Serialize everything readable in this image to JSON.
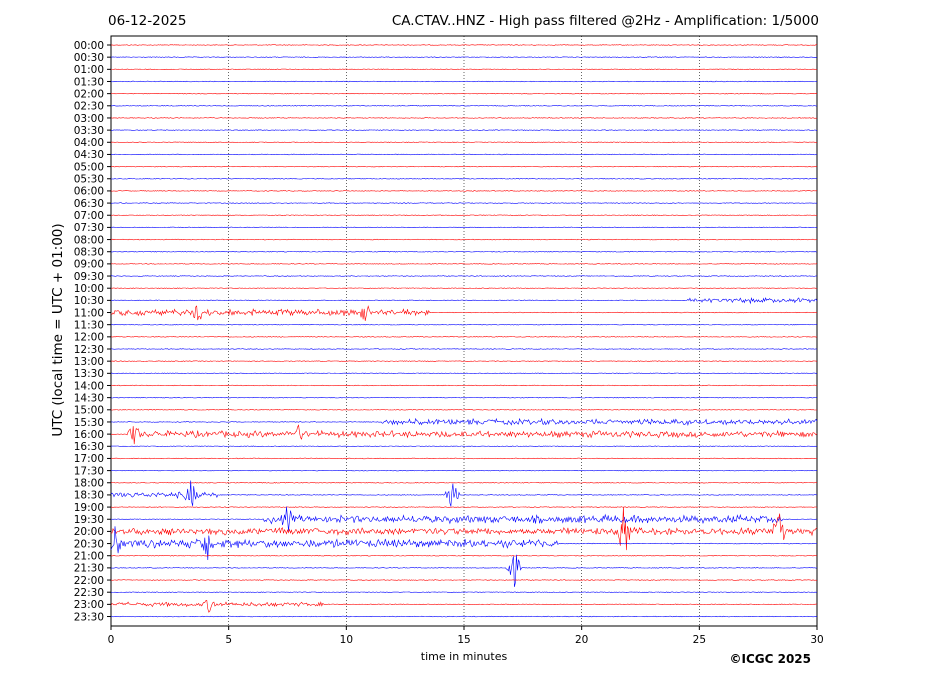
{
  "header": {
    "date": "06-12-2025",
    "title": "CA.CTAV..HNZ - High pass filtered @2Hz - Amplification: 1/5000"
  },
  "chart_data": {
    "type": "line",
    "title": "CA.CTAV..HNZ - High pass filtered @2Hz - Amplification: 1/5000",
    "xlabel": "time in minutes",
    "ylabel": "UTC (local time = UTC + 01:00)",
    "xlim": [
      0,
      30
    ],
    "x_ticks": [
      "0",
      "5",
      "10",
      "15",
      "20",
      "25",
      "30"
    ],
    "x_tick_values": [
      0,
      5,
      10,
      15,
      20,
      25,
      30
    ],
    "vertical_grid": true,
    "rows": [
      "00:00",
      "00:30",
      "01:00",
      "01:30",
      "02:00",
      "02:30",
      "03:00",
      "03:30",
      "04:00",
      "04:30",
      "05:00",
      "05:30",
      "06:00",
      "06:30",
      "07:00",
      "07:30",
      "08:00",
      "08:30",
      "09:00",
      "09:30",
      "10:00",
      "10:30",
      "11:00",
      "11:30",
      "12:00",
      "12:30",
      "13:00",
      "13:30",
      "14:00",
      "14:30",
      "15:00",
      "15:30",
      "16:00",
      "16:30",
      "17:00",
      "17:30",
      "18:00",
      "18:30",
      "19:00",
      "19:30",
      "20:00",
      "20:30",
      "21:00",
      "21:30",
      "22:00",
      "22:30",
      "23:00",
      "23:30"
    ],
    "row_colors": [
      "#ff0000",
      "#0000ff"
    ],
    "activity": [
      {
        "row": "10:30",
        "start": 24.5,
        "end": 30,
        "level": 0.35
      },
      {
        "row": "11:00",
        "start": 0,
        "end": 13.5,
        "level": 0.45
      },
      {
        "row": "15:30",
        "start": 11.5,
        "end": 30,
        "level": 0.4
      },
      {
        "row": "16:00",
        "start": 0.8,
        "end": 30,
        "level": 0.45
      },
      {
        "row": "18:30",
        "start": 0,
        "end": 4.5,
        "level": 0.4
      },
      {
        "row": "19:30",
        "start": 6.5,
        "end": 28.5,
        "level": 0.55
      },
      {
        "row": "20:00",
        "start": 0,
        "end": 30,
        "level": 0.5
      },
      {
        "row": "20:30",
        "start": 0,
        "end": 19,
        "level": 0.6
      },
      {
        "row": "23:00",
        "start": 0,
        "end": 9,
        "level": 0.3
      }
    ],
    "events": [
      {
        "row": "11:00",
        "x": 3.7,
        "amp": 1.0
      },
      {
        "row": "11:00",
        "x": 10.8,
        "amp": 1.0
      },
      {
        "row": "16:00",
        "x": 1.0,
        "amp": 1.2
      },
      {
        "row": "16:00",
        "x": 8.0,
        "amp": 1.0
      },
      {
        "row": "18:30",
        "x": 3.4,
        "amp": 1.6
      },
      {
        "row": "18:30",
        "x": 14.5,
        "amp": 1.4
      },
      {
        "row": "19:30",
        "x": 7.5,
        "amp": 1.5
      },
      {
        "row": "20:00",
        "x": 21.8,
        "amp": 2.8
      },
      {
        "row": "20:00",
        "x": 28.4,
        "amp": 3.2
      },
      {
        "row": "20:30",
        "x": 0.2,
        "amp": 2.0
      },
      {
        "row": "20:30",
        "x": 4.1,
        "amp": 1.8
      },
      {
        "row": "21:30",
        "x": 17.1,
        "amp": 2.2
      },
      {
        "row": "23:00",
        "x": 4.2,
        "amp": 0.9
      }
    ]
  },
  "footer": {
    "copyright": "©ICGC 2025"
  }
}
